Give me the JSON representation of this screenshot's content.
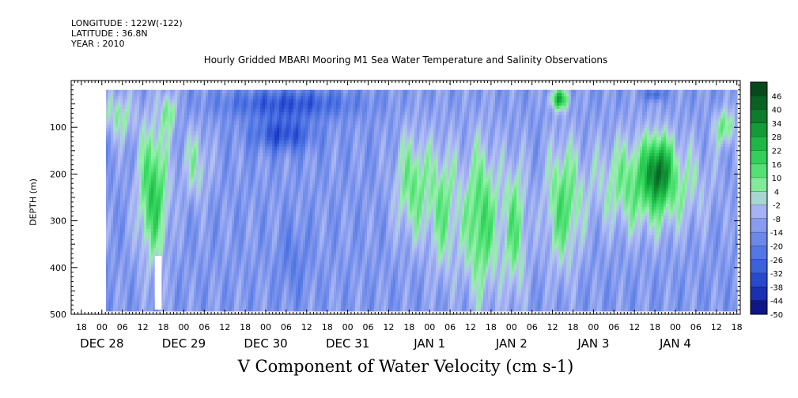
{
  "header": {
    "longitude": "LONGITUDE : 122W(-122)",
    "latitude": "LATITUDE : 36.8N",
    "year": "YEAR : 2010"
  },
  "chart_data": {
    "type": "heatmap",
    "title": "Hourly Gridded MBARI Mooring M1 Sea Water Temperature and Salinity Observations",
    "xlabel": "V Component of Water Velocity (cm s-1)",
    "ylabel": "DEPTH (m)",
    "y_axis": {
      "range": [
        500,
        0
      ],
      "reversed": true,
      "ticks": [
        100,
        200,
        300,
        400,
        500
      ]
    },
    "x_axis": {
      "unit": "hours since Dec 28 00:00",
      "range": [
        -9,
        187
      ],
      "hour_ticks": [
        {
          "h": -6,
          "label": "18"
        },
        {
          "h": 0,
          "label": "00"
        },
        {
          "h": 6,
          "label": "06"
        },
        {
          "h": 12,
          "label": "12"
        },
        {
          "h": 18,
          "label": "18"
        },
        {
          "h": 24,
          "label": "00"
        },
        {
          "h": 30,
          "label": "06"
        },
        {
          "h": 36,
          "label": "12"
        },
        {
          "h": 42,
          "label": "18"
        },
        {
          "h": 48,
          "label": "00"
        },
        {
          "h": 54,
          "label": "06"
        },
        {
          "h": 60,
          "label": "12"
        },
        {
          "h": 66,
          "label": "18"
        },
        {
          "h": 72,
          "label": "00"
        },
        {
          "h": 78,
          "label": "06"
        },
        {
          "h": 84,
          "label": "12"
        },
        {
          "h": 90,
          "label": "18"
        },
        {
          "h": 96,
          "label": "00"
        },
        {
          "h": 102,
          "label": "06"
        },
        {
          "h": 108,
          "label": "12"
        },
        {
          "h": 114,
          "label": "18"
        },
        {
          "h": 120,
          "label": "00"
        },
        {
          "h": 126,
          "label": "06"
        },
        {
          "h": 132,
          "label": "12"
        },
        {
          "h": 138,
          "label": "18"
        },
        {
          "h": 144,
          "label": "00"
        },
        {
          "h": 150,
          "label": "06"
        },
        {
          "h": 156,
          "label": "12"
        },
        {
          "h": 162,
          "label": "18"
        },
        {
          "h": 168,
          "label": "00"
        },
        {
          "h": 174,
          "label": "06"
        },
        {
          "h": 180,
          "label": "12"
        },
        {
          "h": 186,
          "label": "18"
        }
      ],
      "date_labels": [
        {
          "h": 0,
          "label": "DEC 28"
        },
        {
          "h": 24,
          "label": "DEC 29"
        },
        {
          "h": 48,
          "label": "DEC 30"
        },
        {
          "h": 72,
          "label": "DEC 31"
        },
        {
          "h": 96,
          "label": "JAN  1"
        },
        {
          "h": 120,
          "label": "JAN  2"
        },
        {
          "h": 144,
          "label": "JAN  3"
        },
        {
          "h": 168,
          "label": "JAN  4"
        }
      ]
    },
    "colorbar": {
      "range": [
        -50,
        50
      ],
      "levels": [
        46,
        40,
        34,
        28,
        22,
        16,
        10,
        4,
        -2,
        -8,
        -14,
        -20,
        -26,
        -32,
        -38,
        -44,
        -50
      ]
    },
    "data_extent": {
      "time_start_h": 1.2,
      "time_end_h": 185.5,
      "depth_top_m": 20,
      "depth_bottom_m": 490
    },
    "features": [
      {
        "t0": 1,
        "t1": 9,
        "d0": 20,
        "d1": 130,
        "v": 5
      },
      {
        "t0": 11,
        "t1": 19,
        "d0": 80,
        "d1": 400,
        "v": 20
      },
      {
        "t0": 18,
        "t1": 21,
        "d0": 20,
        "d1": 110,
        "v": 8
      },
      {
        "t0": 24,
        "t1": 31,
        "d0": 100,
        "d1": 260,
        "v": 4
      },
      {
        "t0": 34,
        "t1": 75,
        "d0": 20,
        "d1": 80,
        "v": -32
      },
      {
        "t0": 44,
        "t1": 62,
        "d0": 80,
        "d1": 150,
        "v": -34
      },
      {
        "t0": 52,
        "t1": 60,
        "d0": 300,
        "d1": 470,
        "v": -20
      },
      {
        "t0": 86,
        "t1": 96,
        "d0": 100,
        "d1": 350,
        "v": 10
      },
      {
        "t0": 96,
        "t1": 104,
        "d0": 120,
        "d1": 430,
        "v": 8
      },
      {
        "t0": 106,
        "t1": 116,
        "d0": 120,
        "d1": 480,
        "v": 16
      },
      {
        "t0": 118,
        "t1": 124,
        "d0": 150,
        "d1": 480,
        "v": 10
      },
      {
        "t0": 130,
        "t1": 140,
        "d0": 120,
        "d1": 420,
        "v": 12
      },
      {
        "t0": 132,
        "t1": 136,
        "d0": 20,
        "d1": 60,
        "v": 24
      },
      {
        "t0": 144,
        "t1": 176,
        "d0": 110,
        "d1": 330,
        "v": 14
      },
      {
        "t0": 160,
        "t1": 166,
        "d0": 120,
        "d1": 260,
        "v": 18
      },
      {
        "t0": 160,
        "t1": 164,
        "d0": 20,
        "d1": 40,
        "v": -30
      },
      {
        "t0": 180,
        "t1": 185,
        "d0": 60,
        "d1": 140,
        "v": 10
      }
    ]
  }
}
